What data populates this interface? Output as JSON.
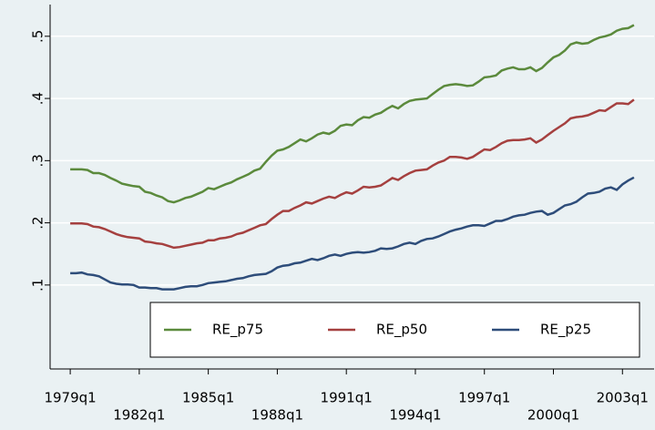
{
  "chart_data": {
    "type": "line",
    "x": [
      76,
      77,
      78,
      79,
      80,
      81,
      82,
      83,
      84,
      85,
      86,
      87,
      88,
      89,
      90,
      91,
      92,
      93,
      94,
      95,
      96,
      97,
      98,
      99,
      100,
      101,
      102,
      103,
      104,
      105,
      106,
      107,
      108,
      109,
      110,
      111,
      112,
      113,
      114,
      115,
      116,
      117,
      118,
      119,
      120,
      121,
      122,
      123,
      124,
      125,
      126,
      127,
      128,
      129,
      130,
      131,
      132,
      133,
      134,
      135,
      136,
      137,
      138,
      139,
      140,
      141,
      142,
      143,
      144,
      145,
      146,
      147,
      148,
      149,
      150,
      151,
      152,
      153,
      154,
      155,
      156,
      157,
      158,
      159,
      160,
      161,
      162,
      163,
      164,
      165,
      166,
      167,
      168,
      169,
      170,
      171,
      172,
      173,
      174
    ],
    "series": [
      {
        "name": "RE_p75",
        "color": "#5b8a3c",
        "values": [
          0.286,
          0.286,
          0.286,
          0.285,
          0.28,
          0.28,
          0.277,
          0.272,
          0.268,
          0.263,
          0.261,
          0.259,
          0.258,
          0.25,
          0.248,
          0.244,
          0.241,
          0.235,
          0.233,
          0.236,
          0.24,
          0.242,
          0.246,
          0.25,
          0.256,
          0.254,
          0.258,
          0.262,
          0.265,
          0.27,
          0.274,
          0.278,
          0.284,
          0.287,
          0.298,
          0.308,
          0.316,
          0.318,
          0.322,
          0.328,
          0.334,
          0.331,
          0.336,
          0.342,
          0.345,
          0.343,
          0.348,
          0.356,
          0.358,
          0.357,
          0.365,
          0.37,
          0.369,
          0.374,
          0.377,
          0.383,
          0.388,
          0.384,
          0.391,
          0.396,
          0.398,
          0.399,
          0.4,
          0.407,
          0.414,
          0.42,
          0.422,
          0.423,
          0.422,
          0.42,
          0.421,
          0.427,
          0.434,
          0.435,
          0.437,
          0.445,
          0.448,
          0.45,
          0.447,
          0.447,
          0.45,
          0.444,
          0.449,
          0.458,
          0.466,
          0.47,
          0.477,
          0.487,
          0.49,
          0.488,
          0.489,
          0.494,
          0.498,
          0.5,
          0.503,
          0.509,
          0.512,
          0.513,
          0.518
        ]
      },
      {
        "name": "RE_p50",
        "color": "#a5403f",
        "values": [
          0.199,
          0.199,
          0.199,
          0.198,
          0.194,
          0.193,
          0.19,
          0.186,
          0.182,
          0.179,
          0.177,
          0.176,
          0.175,
          0.17,
          0.169,
          0.167,
          0.166,
          0.163,
          0.16,
          0.161,
          0.163,
          0.165,
          0.167,
          0.168,
          0.172,
          0.172,
          0.175,
          0.176,
          0.178,
          0.182,
          0.184,
          0.188,
          0.192,
          0.196,
          0.198,
          0.206,
          0.213,
          0.219,
          0.219,
          0.224,
          0.228,
          0.233,
          0.231,
          0.235,
          0.239,
          0.242,
          0.24,
          0.245,
          0.249,
          0.247,
          0.252,
          0.258,
          0.257,
          0.258,
          0.26,
          0.266,
          0.272,
          0.269,
          0.275,
          0.28,
          0.284,
          0.285,
          0.286,
          0.292,
          0.297,
          0.3,
          0.306,
          0.306,
          0.305,
          0.303,
          0.306,
          0.312,
          0.318,
          0.317,
          0.322,
          0.328,
          0.332,
          0.333,
          0.333,
          0.334,
          0.336,
          0.329,
          0.334,
          0.341,
          0.348,
          0.354,
          0.36,
          0.368,
          0.37,
          0.371,
          0.373,
          0.377,
          0.381,
          0.38,
          0.386,
          0.392,
          0.392,
          0.391,
          0.398
        ]
      },
      {
        "name": "RE_p25",
        "color": "#2e4d7a",
        "values": [
          0.119,
          0.119,
          0.12,
          0.117,
          0.116,
          0.114,
          0.109,
          0.104,
          0.102,
          0.101,
          0.101,
          0.1,
          0.096,
          0.096,
          0.095,
          0.095,
          0.093,
          0.093,
          0.093,
          0.095,
          0.097,
          0.098,
          0.098,
          0.1,
          0.103,
          0.104,
          0.105,
          0.106,
          0.108,
          0.11,
          0.111,
          0.114,
          0.116,
          0.117,
          0.118,
          0.122,
          0.128,
          0.131,
          0.132,
          0.135,
          0.136,
          0.139,
          0.142,
          0.14,
          0.143,
          0.147,
          0.149,
          0.147,
          0.15,
          0.152,
          0.153,
          0.152,
          0.153,
          0.155,
          0.159,
          0.158,
          0.159,
          0.162,
          0.166,
          0.168,
          0.166,
          0.171,
          0.174,
          0.175,
          0.178,
          0.182,
          0.186,
          0.189,
          0.191,
          0.194,
          0.196,
          0.196,
          0.195,
          0.199,
          0.203,
          0.203,
          0.206,
          0.21,
          0.212,
          0.213,
          0.216,
          0.218,
          0.219,
          0.213,
          0.216,
          0.222,
          0.228,
          0.23,
          0.234,
          0.241,
          0.247,
          0.248,
          0.25,
          0.255,
          0.257,
          0.253,
          0.262,
          0.268,
          0.273
        ]
      }
    ],
    "xlim": [
      72.5,
      177.5
    ],
    "xticks": [
      {
        "value": 76,
        "label": "1979q1"
      },
      {
        "value": 88,
        "label": "1982q1"
      },
      {
        "value": 100,
        "label": "1985q1"
      },
      {
        "value": 112,
        "label": "1988q1"
      },
      {
        "value": 124,
        "label": "1991q1"
      },
      {
        "value": 136,
        "label": "1994q1"
      },
      {
        "value": 148,
        "label": "1997q1"
      },
      {
        "value": 160,
        "label": "2000q1"
      },
      {
        "value": 172,
        "label": "2003q1"
      }
    ],
    "ylim": [
      -0.035,
      0.551
    ],
    "yticks": [
      {
        "value": 0.1,
        "label": ".1"
      },
      {
        "value": 0.2,
        "label": ".2"
      },
      {
        "value": 0.3,
        "label": ".3"
      },
      {
        "value": 0.4,
        "label": ".4"
      },
      {
        "value": 0.5,
        "label": ".5"
      }
    ],
    "grid": true
  }
}
